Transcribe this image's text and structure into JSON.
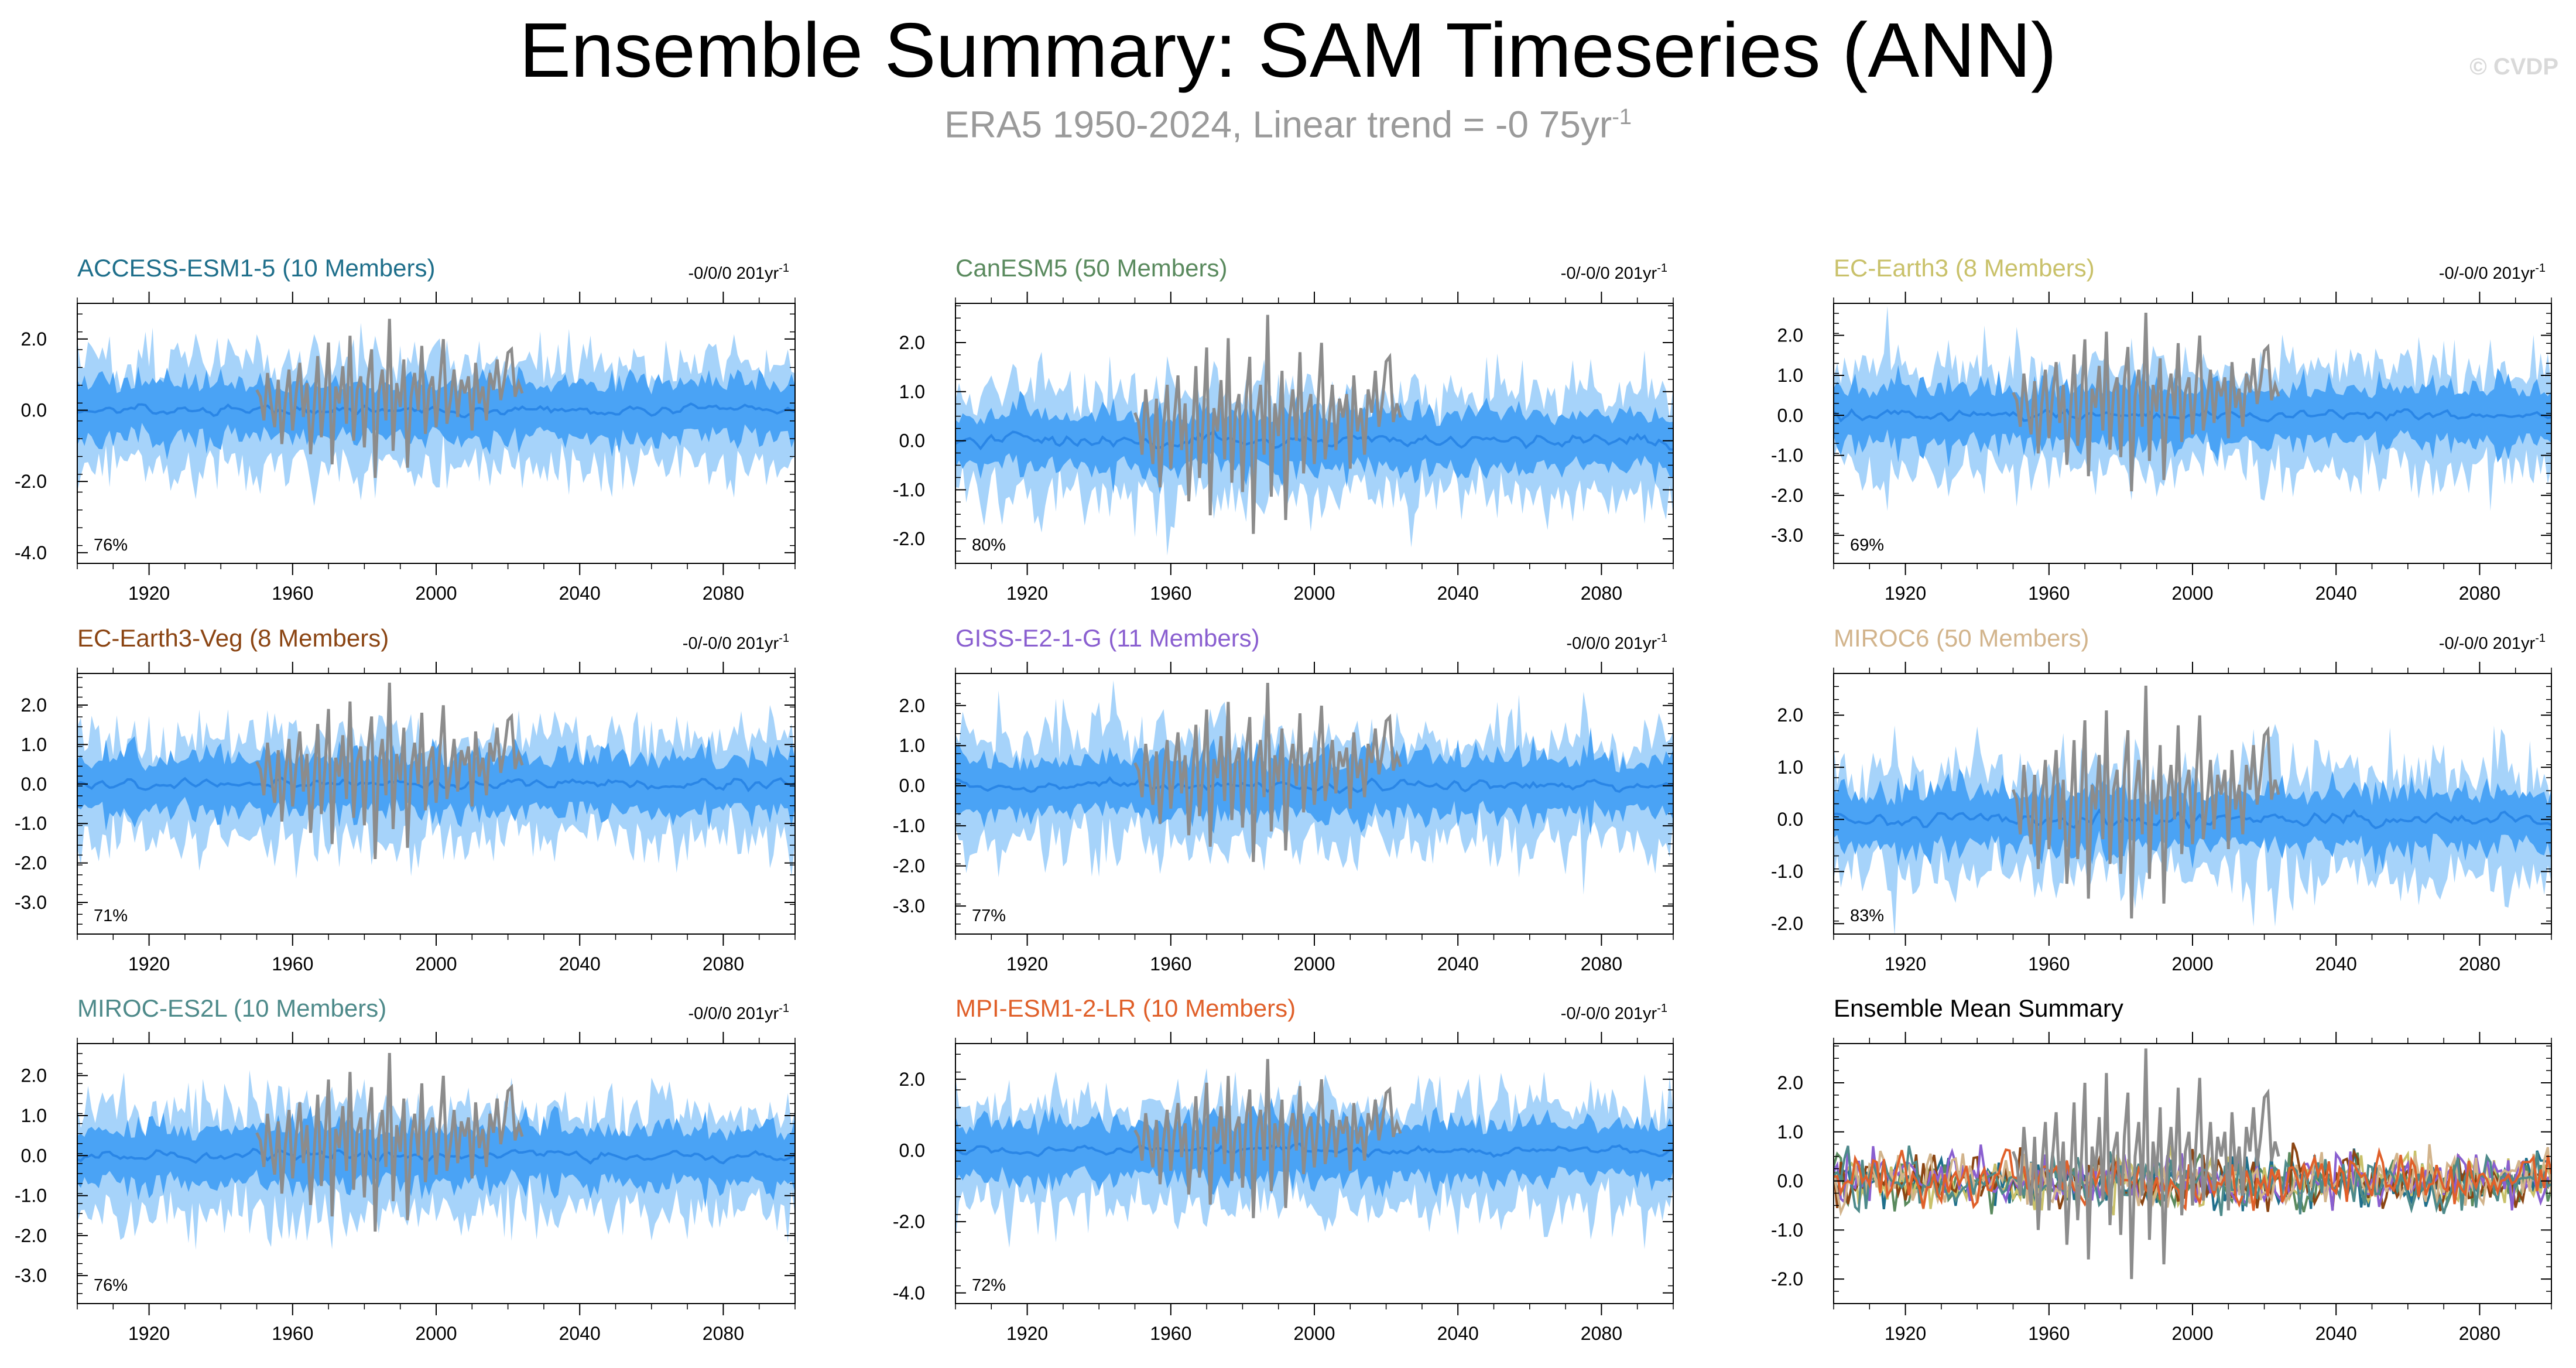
{
  "title": "Ensemble Summary: SAM Timeseries (ANN)",
  "subtitle_text": "ERA5 1950-2024, Linear trend = -0 75yr",
  "subtitle_sup": "-1",
  "copyright": "© CVDP",
  "colors": {
    "spread_outer": "#a6d3fa",
    "spread_inner": "#4aa3f5",
    "ensemble_mean": "#2a86e6",
    "observations": "#8c8c8c"
  },
  "chart_data": [
    {
      "type": "line",
      "title": "ACCESS-ESM1-5 (10 Members)",
      "title_color": "#1f6f8b",
      "trend": "-0/0/0 201yr",
      "trend_sup": "-1",
      "percent": "76%",
      "ylim": [
        -4.3,
        3.0
      ],
      "yticks": [
        2.0,
        0.0,
        -2.0,
        -4.0
      ],
      "yticklabels": [
        "2.0",
        "0.0",
        "-2.0",
        "-4.0"
      ],
      "xlim": [
        1900,
        2100
      ],
      "xticks": [
        1920,
        1960,
        2000,
        2040,
        2080
      ],
      "series": [
        {
          "name": "ensemble range"
        },
        {
          "name": "ensemble 10-90%"
        },
        {
          "name": "ensemble mean"
        },
        {
          "name": "ERA5"
        }
      ]
    },
    {
      "type": "line",
      "title": "CanESM5 (50 Members)",
      "title_color": "#5a8a5e",
      "trend": "-0/-0/0 201yr",
      "trend_sup": "-1",
      "percent": "80%",
      "ylim": [
        -2.5,
        2.8
      ],
      "yticks": [
        2.0,
        1.0,
        0.0,
        -1.0,
        -2.0
      ],
      "yticklabels": [
        "2.0",
        "1.0",
        "0.0",
        "-1.0",
        "-2.0"
      ],
      "xlim": [
        1900,
        2100
      ],
      "xticks": [
        1920,
        1960,
        2000,
        2040,
        2080
      ],
      "series": [
        {
          "name": "ensemble range"
        },
        {
          "name": "ensemble 10-90%"
        },
        {
          "name": "ensemble mean"
        },
        {
          "name": "ERA5"
        }
      ]
    },
    {
      "type": "line",
      "title": "EC-Earth3 (8 Members)",
      "title_color": "#c9c16a",
      "trend": "-0/-0/0 201yr",
      "trend_sup": "-1",
      "percent": "69%",
      "ylim": [
        -3.7,
        2.8
      ],
      "yticks": [
        2.0,
        1.0,
        0.0,
        -1.0,
        -2.0,
        -3.0
      ],
      "yticklabels": [
        "2.0",
        "1.0",
        "0.0",
        "-1.0",
        "-2.0",
        "-3.0"
      ],
      "xlim": [
        1900,
        2100
      ],
      "xticks": [
        1920,
        1960,
        2000,
        2040,
        2080
      ],
      "series": [
        {
          "name": "ensemble range"
        },
        {
          "name": "ensemble 10-90%"
        },
        {
          "name": "ensemble mean"
        },
        {
          "name": "ERA5"
        }
      ]
    },
    {
      "type": "line",
      "title": "EC-Earth3-Veg (8 Members)",
      "title_color": "#8b4513",
      "trend": "-0/-0/0 201yr",
      "trend_sup": "-1",
      "percent": "71%",
      "ylim": [
        -3.8,
        2.8
      ],
      "yticks": [
        2.0,
        1.0,
        0.0,
        -1.0,
        -2.0,
        -3.0
      ],
      "yticklabels": [
        "2.0",
        "1.0",
        "0.0",
        "-1.0",
        "-2.0",
        "-3.0"
      ],
      "xlim": [
        1900,
        2100
      ],
      "xticks": [
        1920,
        1960,
        2000,
        2040,
        2080
      ],
      "series": [
        {
          "name": "ensemble range"
        },
        {
          "name": "ensemble 10-90%"
        },
        {
          "name": "ensemble mean"
        },
        {
          "name": "ERA5"
        }
      ]
    },
    {
      "type": "line",
      "title": "GISS-E2-1-G (11 Members)",
      "title_color": "#8a5fd0",
      "trend": "-0/0/0 201yr",
      "trend_sup": "-1",
      "percent": "77%",
      "ylim": [
        -3.7,
        2.8
      ],
      "yticks": [
        2.0,
        1.0,
        0.0,
        -1.0,
        -2.0,
        -3.0
      ],
      "yticklabels": [
        "2.0",
        "1.0",
        "0.0",
        "-1.0",
        "-2.0",
        "-3.0"
      ],
      "xlim": [
        1900,
        2100
      ],
      "xticks": [
        1920,
        1960,
        2000,
        2040,
        2080
      ],
      "series": [
        {
          "name": "ensemble range"
        },
        {
          "name": "ensemble 10-90%"
        },
        {
          "name": "ensemble mean"
        },
        {
          "name": "ERA5"
        }
      ]
    },
    {
      "type": "line",
      "title": "MIROC6 (50 Members)",
      "title_color": "#d2b48c",
      "trend": "-0/-0/0 201yr",
      "trend_sup": "-1",
      "percent": "83%",
      "ylim": [
        -2.2,
        2.8
      ],
      "yticks": [
        2.0,
        1.0,
        0.0,
        -1.0,
        -2.0
      ],
      "yticklabels": [
        "2.0",
        "1.0",
        "0.0",
        "-1.0",
        "-2.0"
      ],
      "xlim": [
        1900,
        2100
      ],
      "xticks": [
        1920,
        1960,
        2000,
        2040,
        2080
      ],
      "series": [
        {
          "name": "ensemble range"
        },
        {
          "name": "ensemble 10-90%"
        },
        {
          "name": "ensemble mean"
        },
        {
          "name": "ERA5"
        }
      ]
    },
    {
      "type": "line",
      "title": "MIROC-ES2L (10 Members)",
      "title_color": "#4e8a8a",
      "trend": "-0/0/0 201yr",
      "trend_sup": "-1",
      "percent": "76%",
      "ylim": [
        -3.7,
        2.8
      ],
      "yticks": [
        2.0,
        1.0,
        0.0,
        -1.0,
        -2.0,
        -3.0
      ],
      "yticklabels": [
        "2.0",
        "1.0",
        "0.0",
        "-1.0",
        "-2.0",
        "-3.0"
      ],
      "xlim": [
        1900,
        2100
      ],
      "xticks": [
        1920,
        1960,
        2000,
        2040,
        2080
      ],
      "series": [
        {
          "name": "ensemble range"
        },
        {
          "name": "ensemble 10-90%"
        },
        {
          "name": "ensemble mean"
        },
        {
          "name": "ERA5"
        }
      ]
    },
    {
      "type": "line",
      "title": "MPI-ESM1-2-LR (10 Members)",
      "title_color": "#e0602a",
      "trend": "-0/-0/0 201yr",
      "trend_sup": "-1",
      "percent": "72%",
      "ylim": [
        -4.3,
        3.0
      ],
      "yticks": [
        2.0,
        0.0,
        -2.0,
        -4.0
      ],
      "yticklabels": [
        "2.0",
        "0.0",
        "-2.0",
        "-4.0"
      ],
      "xlim": [
        1900,
        2100
      ],
      "xticks": [
        1920,
        1960,
        2000,
        2040,
        2080
      ],
      "series": [
        {
          "name": "ensemble range"
        },
        {
          "name": "ensemble 10-90%"
        },
        {
          "name": "ensemble mean"
        },
        {
          "name": "ERA5"
        }
      ]
    },
    {
      "type": "line",
      "title": "Ensemble Mean Summary",
      "title_color": "#000000",
      "ylim": [
        -2.5,
        2.8
      ],
      "yticks": [
        2.0,
        1.0,
        0.0,
        -1.0,
        -2.0
      ],
      "yticklabels": [
        "2.0",
        "1.0",
        "0.0",
        "-1.0",
        "-2.0"
      ],
      "xlim": [
        1900,
        2100
      ],
      "xticks": [
        1920,
        1960,
        2000,
        2040,
        2080
      ],
      "series": [
        {
          "name": "ACCESS-ESM1-5",
          "color": "#1f6f8b"
        },
        {
          "name": "CanESM5",
          "color": "#5a8a5e"
        },
        {
          "name": "EC-Earth3",
          "color": "#c9c16a"
        },
        {
          "name": "EC-Earth3-Veg",
          "color": "#8b4513"
        },
        {
          "name": "GISS-E2-1-G",
          "color": "#8a5fd0"
        },
        {
          "name": "MIROC6",
          "color": "#d2b48c"
        },
        {
          "name": "MIROC-ES2L",
          "color": "#4e8a8a"
        },
        {
          "name": "MPI-ESM1-2-LR",
          "color": "#e0602a"
        },
        {
          "name": "ERA5",
          "color": "#8c8c8c"
        }
      ]
    }
  ]
}
